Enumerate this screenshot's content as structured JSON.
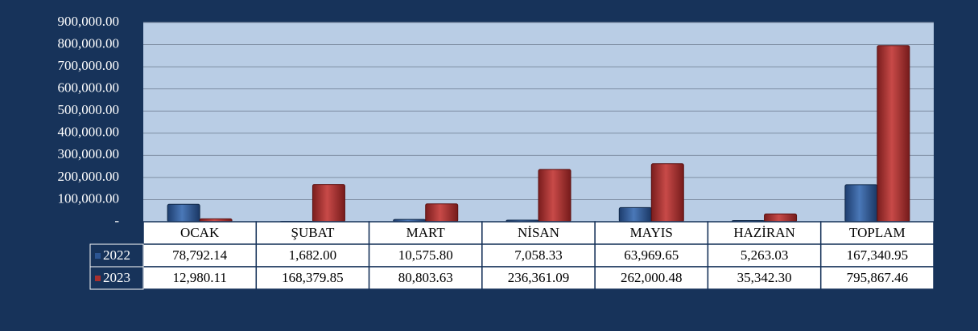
{
  "chart_data": {
    "type": "bar",
    "categories": [
      "OCAK",
      "ŞUBAT",
      "MART",
      "NİSAN",
      "MAYIS",
      "HAZİRAN",
      "TOPLAM"
    ],
    "series": [
      {
        "name": "2022",
        "color": "#2c5592",
        "values": [
          78792.14,
          1682.0,
          10575.8,
          7058.33,
          63969.65,
          5263.03,
          167340.95
        ],
        "value_labels": [
          "78,792.14",
          "1,682.00",
          "10,575.80",
          "7,058.33",
          "63,969.65",
          "5,263.03",
          "167,340.95"
        ]
      },
      {
        "name": "2023",
        "color": "#a8302f",
        "values": [
          12980.11,
          168379.85,
          80803.63,
          236361.09,
          262000.48,
          35342.3,
          795867.46
        ],
        "value_labels": [
          "12,980.11",
          "168,379.85",
          "80,803.63",
          "236,361.09",
          "262,000.48",
          "35,342.30",
          "795,867.46"
        ]
      }
    ],
    "ylim": [
      0,
      900000
    ],
    "yticks": [
      {
        "value": 0,
        "label": "-"
      },
      {
        "value": 100000,
        "label": "100,000.00"
      },
      {
        "value": 200000,
        "label": "200,000.00"
      },
      {
        "value": 300000,
        "label": "300,000.00"
      },
      {
        "value": 400000,
        "label": "400,000.00"
      },
      {
        "value": 500000,
        "label": "500,000.00"
      },
      {
        "value": 600000,
        "label": "600,000.00"
      },
      {
        "value": 700000,
        "label": "700,000.00"
      },
      {
        "value": 800000,
        "label": "800,000.00"
      },
      {
        "value": 900000,
        "label": "900,000.00"
      }
    ],
    "grid": true,
    "data_table": true
  }
}
